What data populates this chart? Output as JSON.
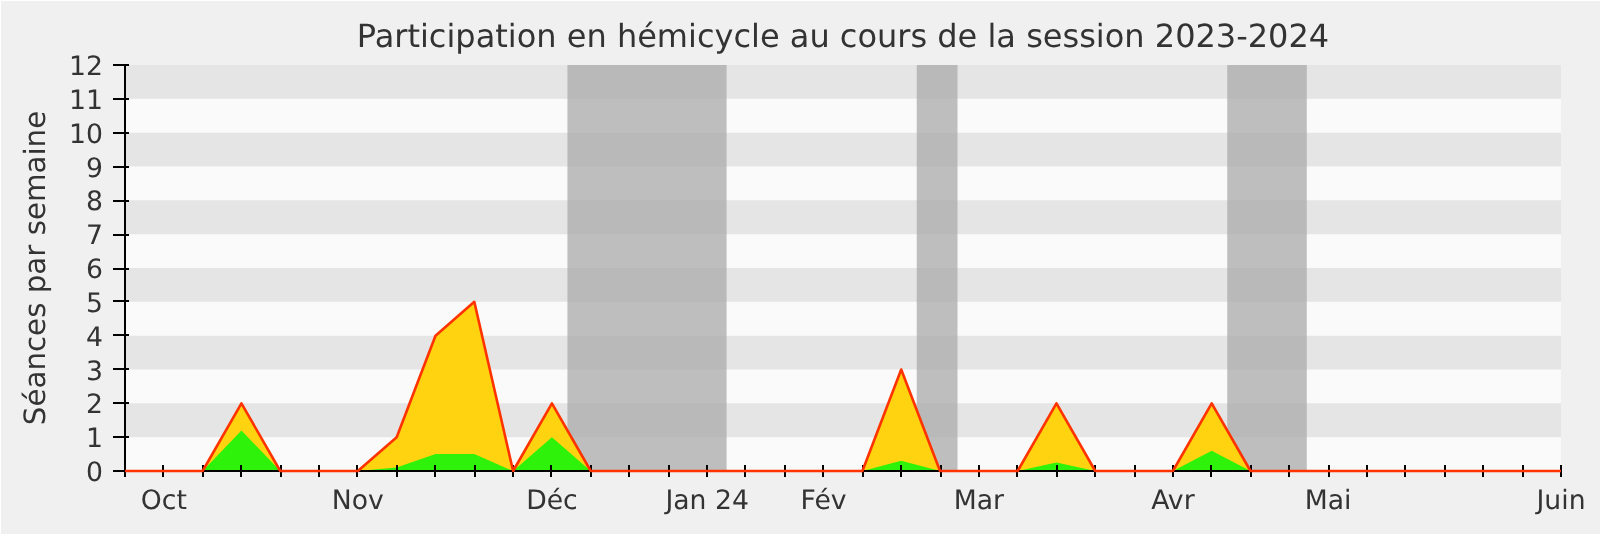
{
  "chart_data": {
    "type": "area",
    "title": "Participation en hémicycle au cours de la session 2023-2024",
    "ylabel": "Séances par semaine",
    "categories": [
      null,
      "Oct",
      null,
      null,
      null,
      null,
      "Nov",
      null,
      null,
      null,
      null,
      "Déc",
      null,
      null,
      null,
      "Jan 24",
      null,
      null,
      "Fév",
      null,
      null,
      null,
      "Mar",
      null,
      null,
      null,
      null,
      "Avr",
      null,
      null,
      null,
      "Mai",
      null,
      null,
      null,
      null,
      null,
      "Juin"
    ],
    "series": [
      {
        "color": "#ffd30f",
        "values": [
          0,
          0,
          0,
          2,
          0,
          0,
          0,
          1,
          4,
          5,
          0,
          2,
          0,
          0,
          0,
          0,
          0,
          0,
          0,
          0,
          3,
          0,
          0,
          0,
          2,
          0,
          0,
          0,
          2,
          0,
          0,
          0,
          0,
          0,
          0,
          0,
          0,
          0
        ]
      },
      {
        "color": "#2ef20a",
        "values": [
          0,
          0,
          0,
          1.2,
          0,
          0,
          0,
          0.1,
          0.5,
          0.5,
          0,
          1,
          0,
          0,
          0,
          0,
          0,
          0,
          0,
          0,
          0.3,
          0,
          0,
          0,
          0.25,
          0,
          0,
          0,
          0.6,
          0,
          0,
          0,
          0,
          0,
          0,
          0,
          0,
          0
        ]
      }
    ],
    "yticks": [
      0,
      1,
      2,
      3,
      4,
      5,
      6,
      7,
      8,
      9,
      10,
      11,
      12
    ],
    "ylim": [
      0,
      12
    ]
  }
}
